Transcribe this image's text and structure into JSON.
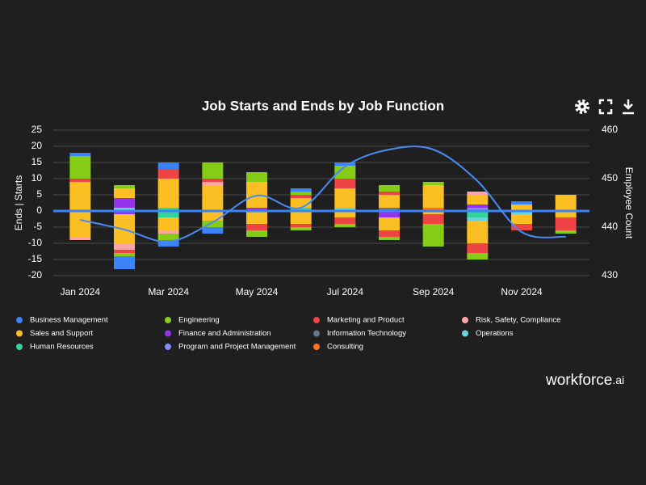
{
  "chart_data": {
    "type": "stacked_bar_line",
    "title": "Job Starts and Ends by Job Function",
    "y_label": "Ends | Starts",
    "y2_label": "Employee Count",
    "categories": [
      "Jan 2024",
      null,
      "Mar 2024",
      null,
      "May 2024",
      null,
      "Jul 2024",
      null,
      "Sep 2024",
      null,
      "Nov 2024",
      null
    ],
    "ylim": [
      -20,
      25
    ],
    "yticks": [
      -20,
      -15,
      -10,
      -5,
      0,
      5,
      10,
      15,
      20,
      25
    ],
    "y2lim": [
      430,
      460
    ],
    "y2ticks": [
      430,
      440,
      450,
      460
    ],
    "grid": true,
    "legend": "bottom",
    "series": [
      {
        "name": "Business Management",
        "color": "#3b82f6",
        "starts": [
          1,
          0,
          2,
          0,
          0,
          1,
          1,
          0,
          0,
          0,
          1,
          0
        ],
        "ends": [
          0,
          -4,
          -2,
          -2,
          0,
          0,
          0,
          0,
          0,
          0,
          0,
          0
        ]
      },
      {
        "name": "Engineering",
        "color": "#84cc16",
        "starts": [
          7,
          1,
          0,
          5,
          3,
          1,
          4,
          2,
          1,
          0,
          0,
          0
        ],
        "ends": [
          0,
          -1,
          -2,
          -2,
          -2,
          -1,
          -1,
          -1,
          -7,
          -2,
          0,
          -1
        ]
      },
      {
        "name": "Marketing and Product",
        "color": "#ef4444",
        "starts": [
          1,
          0,
          3,
          1,
          0,
          1,
          3,
          1,
          0,
          0,
          0,
          0
        ],
        "ends": [
          0,
          -1,
          0,
          0,
          -2,
          -1,
          -2,
          -2,
          -3,
          -3,
          -2,
          -4
        ]
      },
      {
        "name": "Risk, Safety, Compliance",
        "color": "#fca5a5",
        "starts": [
          0,
          0,
          0,
          1,
          0,
          0,
          0,
          0,
          0,
          1,
          0,
          0
        ],
        "ends": [
          -1,
          -2,
          -1,
          0,
          0,
          0,
          0,
          0,
          0,
          0,
          0,
          0
        ]
      },
      {
        "name": "Sales and Support",
        "color": "#fbbf24",
        "starts": [
          9,
          3,
          9,
          8,
          8,
          3,
          6,
          4,
          7,
          3,
          2,
          5
        ],
        "ends": [
          -8,
          -9,
          -4,
          -3,
          -4,
          -4,
          -2,
          -4,
          -1,
          -7,
          -3,
          -2
        ]
      },
      {
        "name": "Finance and Administration",
        "color": "#9333ea",
        "starts": [
          0,
          3,
          0,
          0,
          1,
          0,
          0,
          0,
          0,
          1,
          0,
          0
        ],
        "ends": [
          0,
          -1,
          0,
          0,
          0,
          0,
          0,
          -2,
          0,
          0,
          0,
          0
        ]
      },
      {
        "name": "Information Technology",
        "color": "#64748b",
        "starts": [
          0,
          0,
          0,
          0,
          0,
          0,
          0,
          1,
          0,
          0,
          0,
          0
        ],
        "ends": [
          0,
          0,
          0,
          0,
          0,
          0,
          0,
          0,
          0,
          0,
          0,
          0
        ]
      },
      {
        "name": "Operations",
        "color": "#67d3e0",
        "starts": [
          0,
          1,
          0,
          0,
          0,
          0,
          1,
          0,
          0,
          0,
          0,
          0
        ],
        "ends": [
          0,
          0,
          0,
          0,
          0,
          0,
          0,
          0,
          0,
          -1,
          -1,
          0
        ]
      },
      {
        "name": "Human Resources",
        "color": "#34d399",
        "starts": [
          0,
          0,
          1,
          0,
          0,
          1,
          0,
          0,
          0,
          0,
          0,
          0
        ],
        "ends": [
          0,
          0,
          -2,
          0,
          0,
          0,
          0,
          0,
          0,
          -2,
          0,
          0
        ]
      },
      {
        "name": "Program and Project Management",
        "color": "#818cf8",
        "starts": [
          0,
          0,
          0,
          0,
          0,
          0,
          0,
          0,
          0,
          1,
          0,
          0
        ],
        "ends": [
          0,
          0,
          0,
          0,
          0,
          0,
          0,
          0,
          0,
          0,
          0,
          0
        ]
      },
      {
        "name": "Consulting",
        "color": "#f97316",
        "starts": [
          0,
          0,
          0,
          0,
          0,
          0,
          0,
          0,
          1,
          0,
          0,
          0
        ],
        "ends": [
          0,
          0,
          0,
          0,
          0,
          0,
          0,
          0,
          0,
          0,
          0,
          0
        ]
      }
    ],
    "line": {
      "color": "#4a8af4",
      "axis": "y2",
      "values": [
        441.5,
        439.5,
        437,
        441,
        446.5,
        444,
        452.5,
        456,
        456,
        449.5,
        439,
        438
      ]
    },
    "zero_line_color": "#3b82f6"
  },
  "brand": {
    "name": "workforce",
    "suffix": ".ai"
  }
}
